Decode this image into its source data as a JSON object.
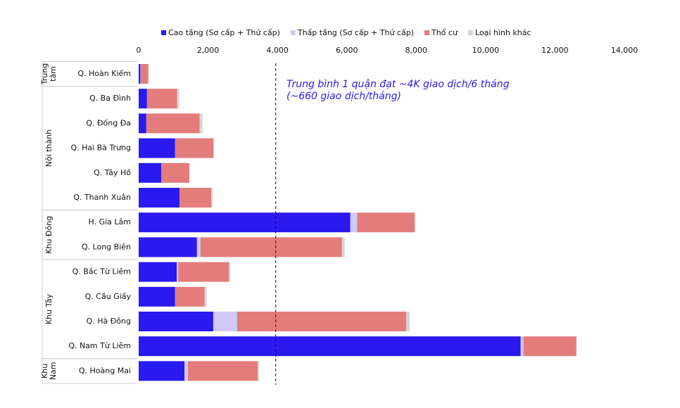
{
  "chart_data": {
    "type": "stacked-barh",
    "categories": [
      "Q. Hoàn Kiếm",
      "Q. Ba Đình",
      "Q. Đống Đa",
      "Q. Hai Bà Trưng",
      "Q. Tây Hồ",
      "Q. Thanh Xuân",
      "H. Gia Lâm",
      "Q. Long Biên",
      "Q. Bắc Từ Liêm",
      "Q. Cầu Giấy",
      "Q. Hà Đông",
      "Q. Nam Từ Liêm",
      "Q. Hoàng Mai"
    ],
    "groups": [
      {
        "label_lines": [
          "Trung",
          "tâm"
        ],
        "count": 1
      },
      {
        "label_lines": [
          "Nội thành"
        ],
        "count": 5
      },
      {
        "label_lines": [
          "Khu Đông"
        ],
        "count": 2
      },
      {
        "label_lines": [
          "Khu Tây"
        ],
        "count": 4
      },
      {
        "label_lines": [
          "Khu",
          "Nam"
        ],
        "count": 1
      }
    ],
    "series": [
      {
        "name": "Cao tầng (Sơ cấp + Thứ cấp)",
        "color": "#2a1aef",
        "values": [
          50,
          240,
          220,
          1050,
          650,
          1180,
          6100,
          1680,
          1100,
          1050,
          2150,
          11010,
          1320
        ]
      },
      {
        "name": "Thấp tầng (Sơ cấp + Thứ cấp)",
        "color": "#cfcaf7",
        "values": [
          10,
          0,
          0,
          0,
          0,
          0,
          200,
          100,
          40,
          0,
          690,
          80,
          100
        ]
      },
      {
        "name": "Thổ cư",
        "color": "#e57c7c",
        "values": [
          220,
          870,
          1540,
          1100,
          810,
          910,
          1660,
          4080,
          1460,
          850,
          4870,
          1520,
          2010
        ]
      },
      {
        "name": "Loại hình khác",
        "color": "#d6d6d6",
        "values": [
          10,
          60,
          80,
          20,
          0,
          40,
          0,
          80,
          40,
          60,
          100,
          20,
          40
        ]
      }
    ],
    "xlim": [
      0,
      14000
    ],
    "xticks": [
      0,
      {
        "value": 2000,
        "label": "2,000"
      },
      {
        "value": 4000,
        "label": "4,000"
      },
      {
        "value": 6000,
        "label": "6,000"
      },
      {
        "value": 8000,
        "label": "8,000"
      },
      {
        "value": 10000,
        "label": "10,000"
      },
      {
        "value": 12000,
        "label": "12,000"
      },
      {
        "value": 14000,
        "label": "14,000"
      }
    ],
    "reference_line": 3950,
    "annotation_lines": [
      "Trung bình 1 quận đạt ~4K giao dịch/6 tháng",
      "(~660 giao dịch/tháng)"
    ]
  }
}
